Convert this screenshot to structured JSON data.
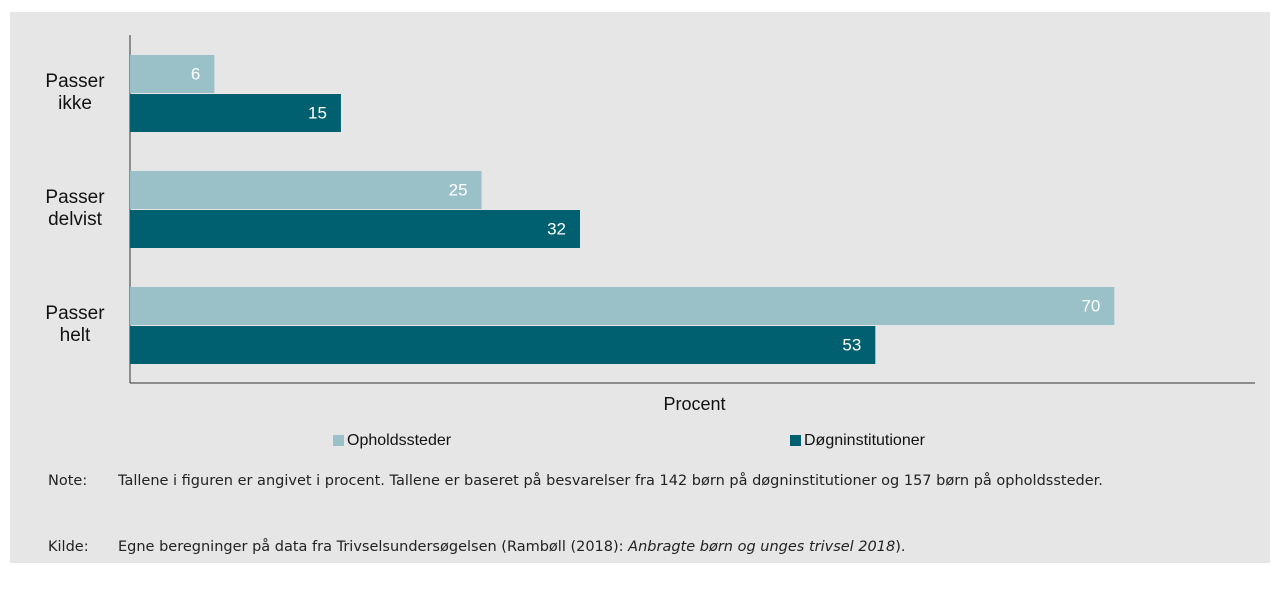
{
  "chart_data": {
    "type": "barh",
    "categories": [
      "Passer ikke",
      "Passer delvist",
      "Passer helt"
    ],
    "series": [
      {
        "name": "Opholdssteder",
        "color": "#9bc1c8",
        "values": [
          6,
          25,
          70
        ]
      },
      {
        "name": "Døgninstitutioner",
        "color": "#00606f",
        "values": [
          15,
          32,
          53
        ]
      }
    ],
    "xlabel": "Procent",
    "xlim": [
      0,
      80
    ]
  },
  "notes": [
    {
      "label": "Note:",
      "parts": [
        {
          "text": "Tallene i figuren er angivet i procent. Tallene er baseret på besvarelser fra 142 børn på døgninstitutioner og 157 børn på opholdssteder."
        }
      ]
    },
    {
      "label": "Kilde:",
      "parts": [
        {
          "text": "Egne beregninger på data fra Trivselsundersøgelsen (Rambøll (2018): "
        },
        {
          "text": "Anbragte børn og unges trivsel 2018",
          "italic": true
        },
        {
          "text": ")."
        }
      ]
    }
  ]
}
